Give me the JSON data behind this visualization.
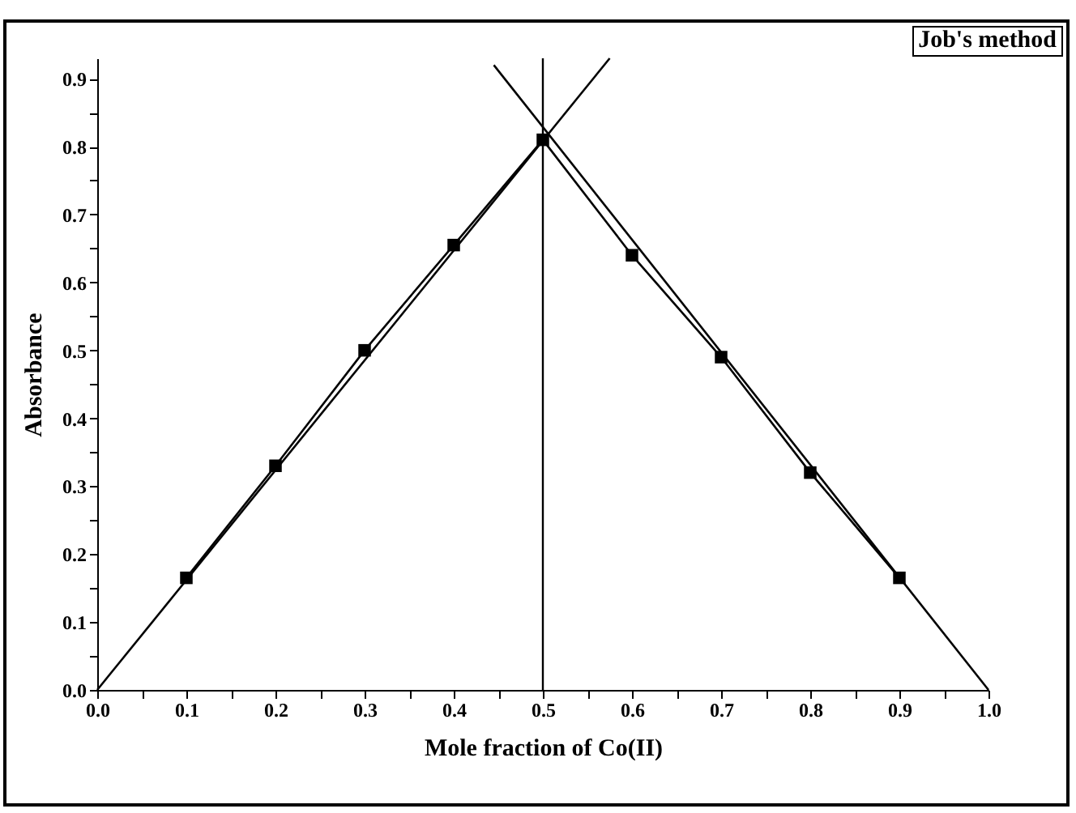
{
  "chart_data": {
    "type": "line",
    "title": "Job's method",
    "xlabel": "Mole fraction of Co(II)",
    "ylabel": "Absorbance",
    "x": [
      0.1,
      0.2,
      0.3,
      0.4,
      0.5,
      0.6,
      0.7,
      0.8,
      0.9
    ],
    "series": [
      {
        "color": "#000000",
        "marker": "square",
        "values": [
          0.165,
          0.33,
          0.5,
          0.655,
          0.81,
          0.64,
          0.49,
          0.32,
          0.165
        ]
      },
      {
        "color": "#000000",
        "marker": "none",
        "x": [
          0,
          0.575
        ],
        "values": [
          0,
          0.93
        ]
      },
      {
        "color": "#000000",
        "marker": "none",
        "x": [
          0.445,
          1.0
        ],
        "values": [
          0.92,
          0
        ]
      }
    ],
    "ref_lines": [
      {
        "axis": "x",
        "value": 0.5,
        "color": "#000000"
      }
    ],
    "xlim": [
      0,
      1.0
    ],
    "ylim": [
      0,
      0.93
    ],
    "xticks": [
      "0.0",
      {
        "value": 0.05,
        "label": null
      },
      0.1,
      {
        "value": 0.15,
        "label": null
      },
      0.2,
      {
        "value": 0.25,
        "label": null
      },
      0.3,
      {
        "value": 0.35,
        "label": null
      },
      0.4,
      {
        "value": 0.45,
        "label": null
      },
      0.5,
      {
        "value": 0.55,
        "label": null
      },
      0.6,
      {
        "value": 0.65,
        "label": null
      },
      0.7,
      {
        "value": 0.75,
        "label": null
      },
      0.8,
      {
        "value": 0.85,
        "label": null
      },
      0.9,
      {
        "value": 0.95,
        "label": null
      },
      "1.0"
    ],
    "yticks": [
      "0.0",
      {
        "value": 0.05,
        "label": null
      },
      0.1,
      {
        "value": 0.15,
        "label": null
      },
      0.2,
      {
        "value": 0.25,
        "label": null
      },
      0.3,
      {
        "value": 0.35,
        "label": null
      },
      0.4,
      {
        "value": 0.45,
        "label": null
      },
      0.5,
      {
        "value": 0.55,
        "label": null
      },
      0.6,
      {
        "value": 0.65,
        "label": null
      },
      0.7,
      {
        "value": 0.75,
        "label": null
      },
      0.8,
      {
        "value": 0.85,
        "label": null
      },
      0.9
    ],
    "grid": false
  }
}
